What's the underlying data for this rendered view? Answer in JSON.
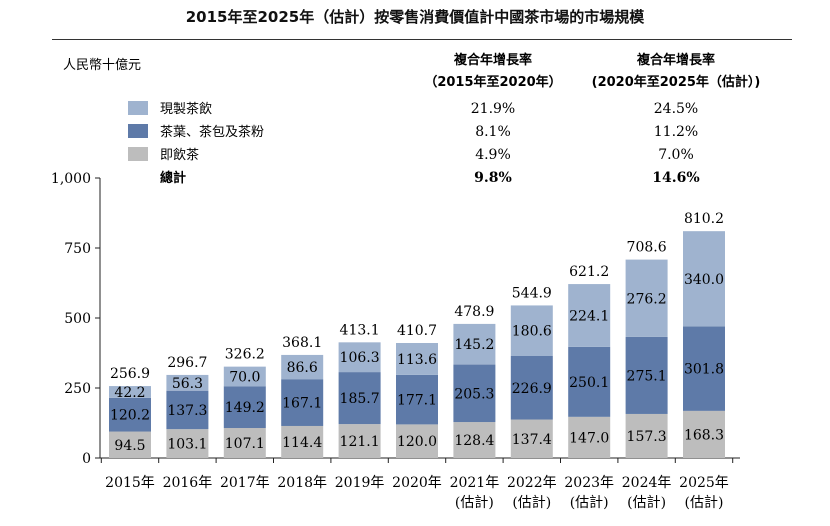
{
  "title": "2015年至2025年（估計）按零售消費價值計中國茶市場的市場規模",
  "unit_label": "人民幣十億元",
  "cagr_headers": [
    {
      "line1": "複合年增長率",
      "line2": "（2015年至2020年）"
    },
    {
      "line1": "複合年增長率",
      "line2": "(2020年至2025年（估計）)"
    }
  ],
  "legend_rows": [
    {
      "label": "現製茶飲",
      "color": "#9fb3cf",
      "cagr1": "21.9%",
      "cagr2": "24.5%"
    },
    {
      "label": "茶葉、茶包及茶粉",
      "color": "#5e7aa8",
      "cagr1": "8.1%",
      "cagr2": "11.2%"
    },
    {
      "label": "即飲茶",
      "color": "#bdbdbd",
      "cagr1": "4.9%",
      "cagr2": "7.0%"
    }
  ],
  "total_row": {
    "label": "總計",
    "cagr1": "9.8%",
    "cagr2": "14.6%"
  },
  "chart_data": {
    "type": "bar",
    "stacked": true,
    "title": "2015年至2025年（估計）按零售消費價值計中國茶市場的市場規模",
    "ylabel": "人民幣十億元",
    "ylim": [
      0,
      1000
    ],
    "yticks": [
      "0",
      "250",
      "500",
      "750",
      "1,000"
    ],
    "ytick_values": [
      0,
      250,
      500,
      750,
      1000
    ],
    "categories": [
      "2015年",
      "2016年",
      "2017年",
      "2018年",
      "2019年",
      "2020年",
      "2021年",
      "2022年",
      "2023年",
      "2024年",
      "2025年"
    ],
    "category_sublabels": [
      "",
      "",
      "",
      "",
      "",
      "",
      "(估計)",
      "(估計)",
      "(估計)",
      "(估計)",
      "(估計)"
    ],
    "series": [
      {
        "name": "即飲茶",
        "color": "#bdbdbd",
        "values": [
          94.5,
          103.1,
          107.1,
          114.4,
          121.1,
          120.0,
          128.4,
          137.4,
          147.0,
          157.3,
          168.3
        ],
        "labels": [
          "94.5",
          "103.1",
          "107.1",
          "114.4",
          "121.1",
          "120.0",
          "128.4",
          "137.4",
          "147.0",
          "157.3",
          "168.3"
        ]
      },
      {
        "name": "茶葉、茶包及茶粉",
        "color": "#5e7aa8",
        "values": [
          120.2,
          137.3,
          149.2,
          167.1,
          185.7,
          177.1,
          205.3,
          226.9,
          250.1,
          275.1,
          301.8
        ],
        "labels": [
          "120.2",
          "137.3",
          "149.2",
          "167.1",
          "185.7",
          "177.1",
          "205.3",
          "226.9",
          "250.1",
          "275.1",
          "301.8"
        ]
      },
      {
        "name": "現製茶飲",
        "color": "#9fb3cf",
        "values": [
          42.2,
          56.3,
          70.0,
          86.6,
          106.3,
          113.6,
          145.2,
          180.6,
          224.1,
          276.2,
          340.0
        ],
        "labels": [
          "42.2",
          "56.3",
          "70.0",
          "86.6",
          "106.3",
          "113.6",
          "145.2",
          "180.6",
          "224.1",
          "276.2",
          "340.0"
        ]
      }
    ],
    "totals": [
      256.9,
      296.7,
      326.2,
      368.1,
      413.1,
      410.7,
      478.9,
      544.9,
      621.2,
      708.6,
      810.2
    ],
    "total_labels": [
      "256.9",
      "296.7",
      "326.2",
      "368.1",
      "413.1",
      "410.7",
      "478.9",
      "544.9",
      "621.2",
      "708.6",
      "810.2"
    ],
    "grid": false,
    "legend_placement": "top-left"
  }
}
